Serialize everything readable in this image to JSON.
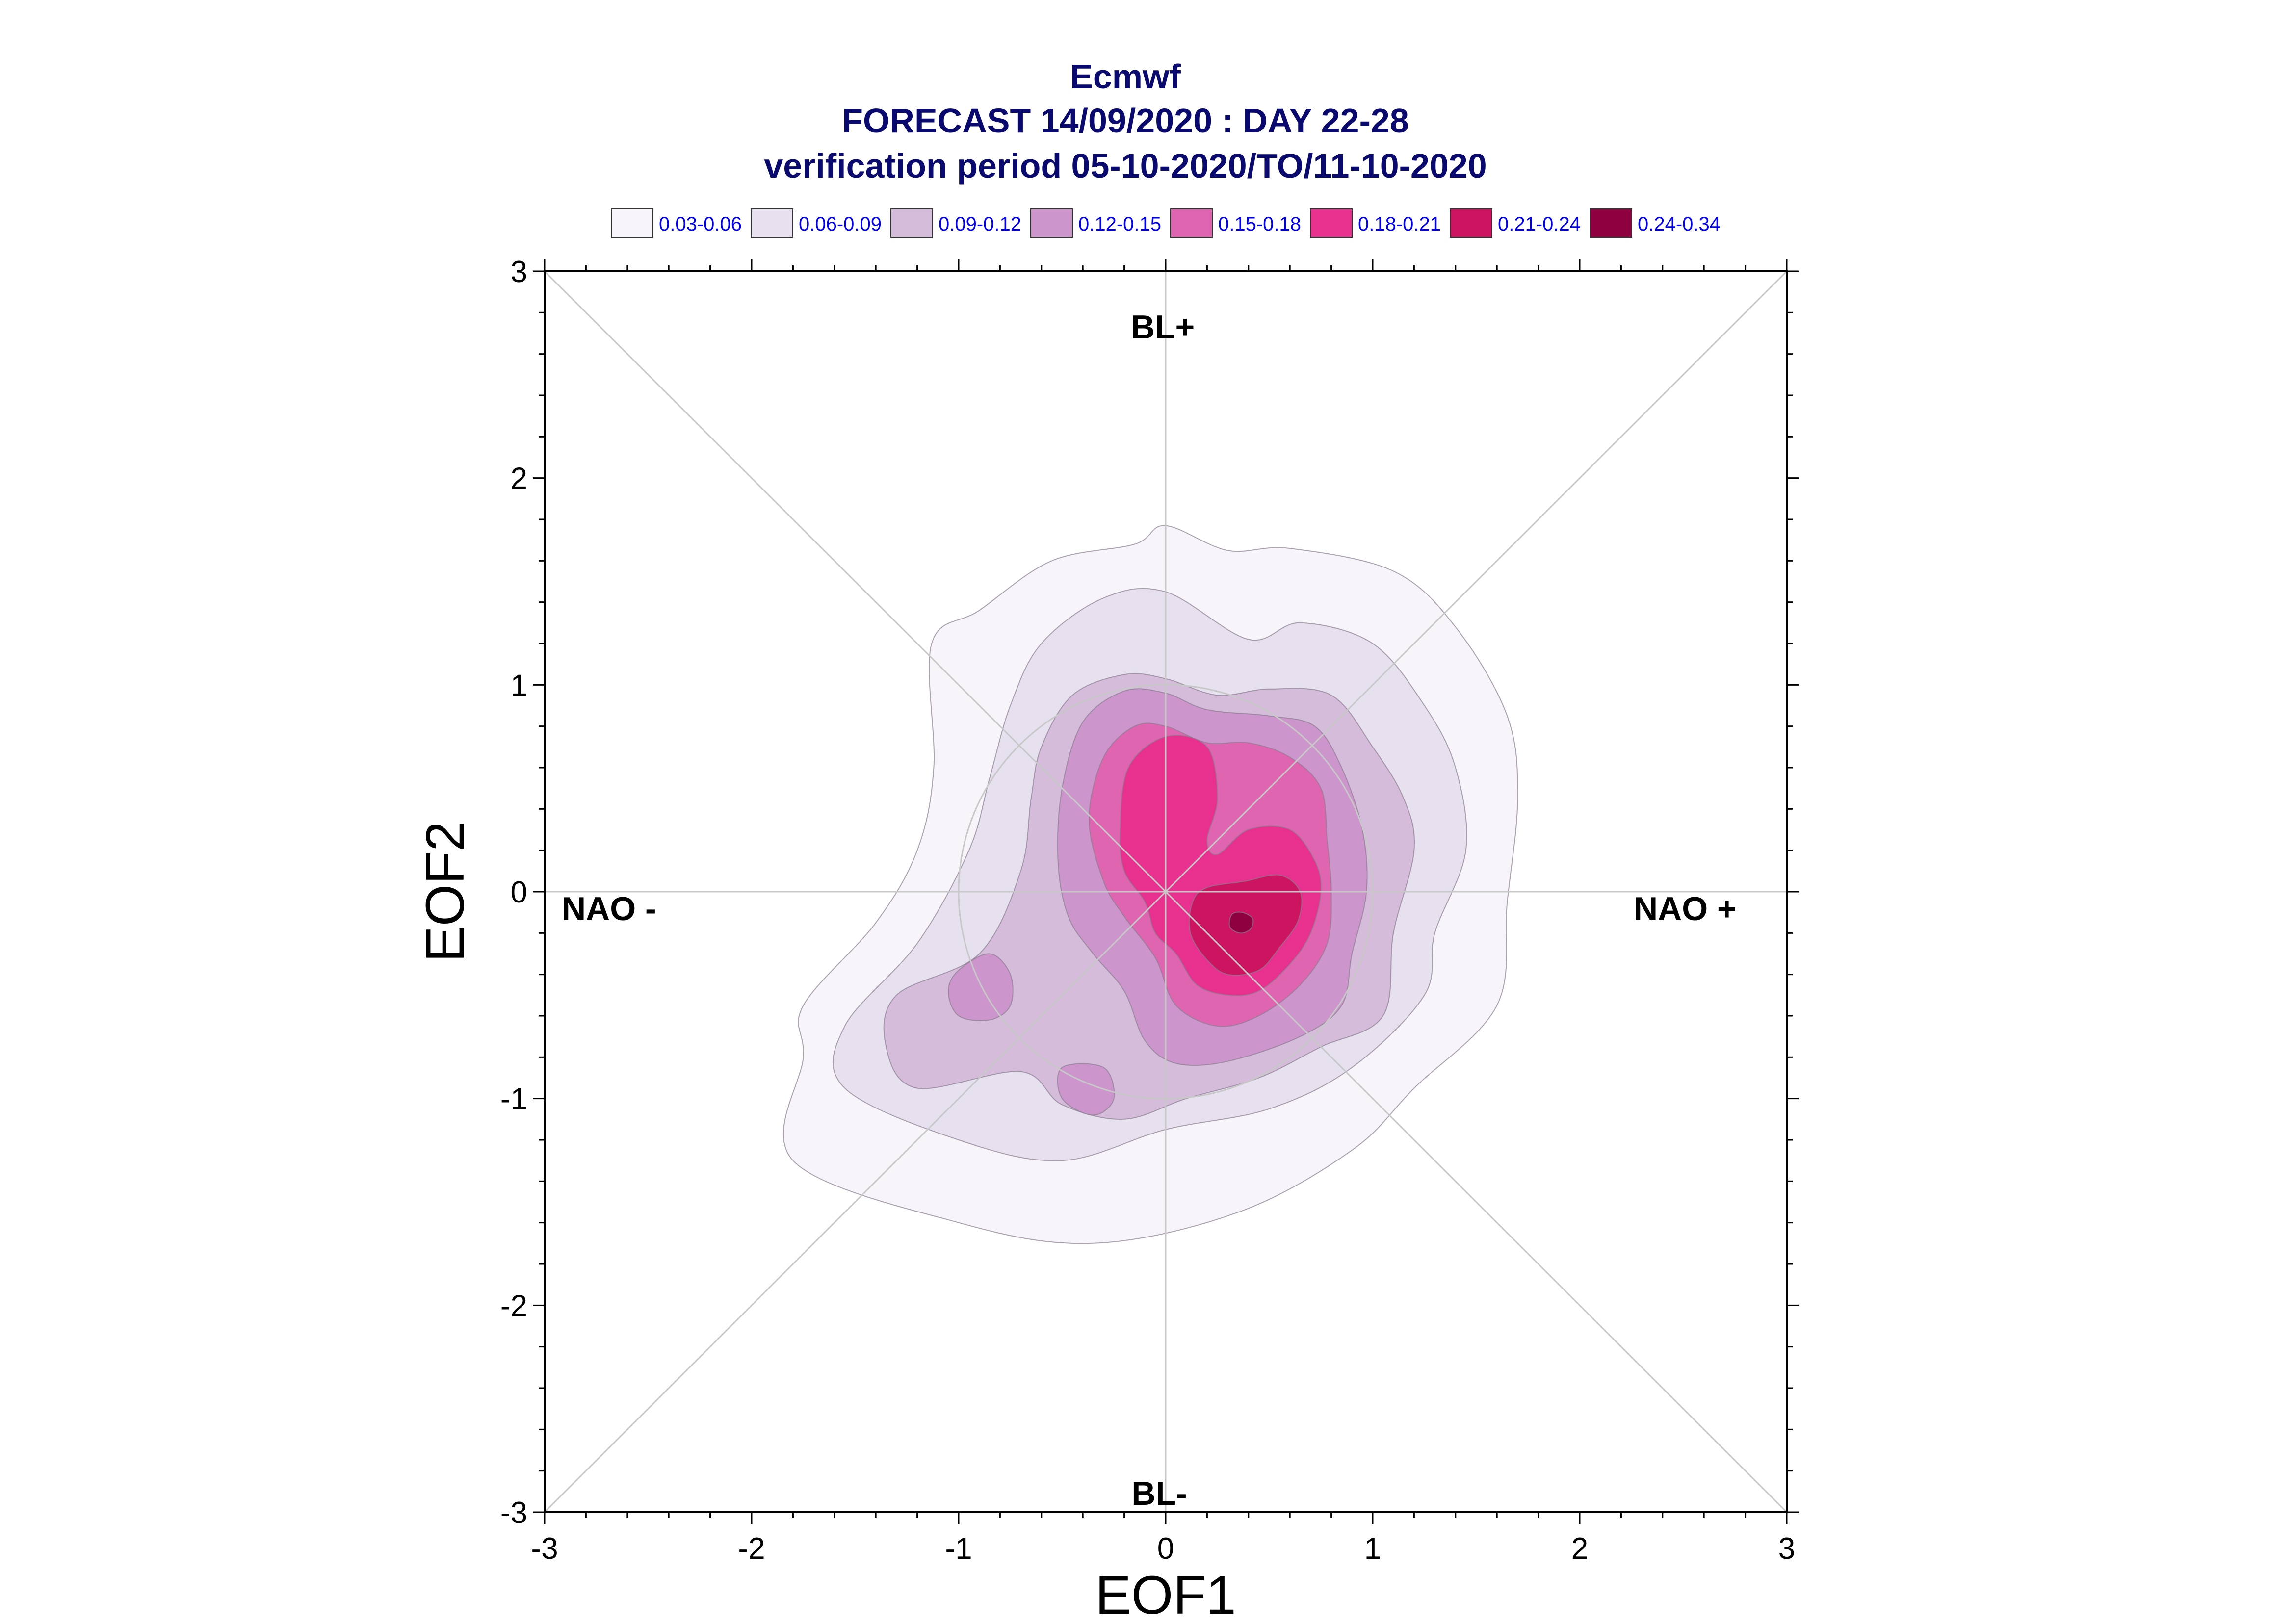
{
  "chart_data": {
    "type": "contour",
    "title": "Ecmwf",
    "subtitle_lines": [
      "FORECAST 14/09/2020 : DAY 22-28",
      "verification period 05-10-2020/TO/11-10-2020"
    ],
    "xlabel": "EOF1",
    "ylabel": "EOF2",
    "xlim": [
      -3,
      3
    ],
    "ylim": [
      -3,
      3
    ],
    "x_ticks": [
      "-3",
      "-2",
      "-1",
      "0",
      "1",
      "2",
      "3"
    ],
    "y_ticks": [
      "3",
      "2",
      "1",
      "0",
      "-1",
      "-2",
      "-3"
    ],
    "regime_labels": {
      "top": "BL+",
      "bottom": "BL-",
      "left": "NAO -",
      "right": "NAO +"
    },
    "legend": [
      {
        "label": "0.03-0.06",
        "color": "#f7f5f9"
      },
      {
        "label": "0.06-0.09",
        "color": "#e7e0ef"
      },
      {
        "label": "0.09-0.12",
        "color": "#d4bcda"
      },
      {
        "label": "0.12-0.15",
        "color": "#cc95cc"
      },
      {
        "label": "0.15-0.18",
        "color": "#df65b0"
      },
      {
        "label": "0.18-0.21",
        "color": "#e8308e"
      },
      {
        "label": "0.21-0.24",
        "color": "#cc1460"
      },
      {
        "label": "0.24-0.34",
        "color": "#8e0040"
      }
    ],
    "density_levels": [
      {
        "level": "0.03-0.06",
        "polygons": [
          [
            [
              -1.13,
              1.2
            ],
            [
              -0.9,
              1.36
            ],
            [
              -0.55,
              1.6
            ],
            [
              -0.15,
              1.68
            ],
            [
              0.0,
              1.77
            ],
            [
              0.3,
              1.65
            ],
            [
              0.6,
              1.66
            ],
            [
              1.1,
              1.55
            ],
            [
              1.4,
              1.28
            ],
            [
              1.65,
              0.85
            ],
            [
              1.7,
              0.45
            ],
            [
              1.65,
              -0.05
            ],
            [
              1.6,
              -0.55
            ],
            [
              1.2,
              -0.95
            ],
            [
              0.9,
              -1.25
            ],
            [
              0.35,
              -1.55
            ],
            [
              -0.35,
              -1.7
            ],
            [
              -1.0,
              -1.6
            ],
            [
              -1.8,
              -1.3
            ],
            [
              -1.75,
              -0.8
            ],
            [
              -1.75,
              -0.55
            ],
            [
              -1.4,
              -0.15
            ],
            [
              -1.2,
              0.2
            ],
            [
              -1.12,
              0.6
            ]
          ]
        ]
      },
      {
        "level": "0.06-0.09",
        "polygons": [
          [
            [
              -0.75,
              0.9
            ],
            [
              -0.6,
              1.2
            ],
            [
              -0.3,
              1.42
            ],
            [
              0.0,
              1.45
            ],
            [
              0.4,
              1.22
            ],
            [
              0.65,
              1.3
            ],
            [
              1.0,
              1.2
            ],
            [
              1.25,
              0.9
            ],
            [
              1.4,
              0.6
            ],
            [
              1.45,
              0.2
            ],
            [
              1.3,
              -0.2
            ],
            [
              1.25,
              -0.5
            ],
            [
              0.9,
              -0.85
            ],
            [
              0.5,
              -1.05
            ],
            [
              0.0,
              -1.15
            ],
            [
              -0.5,
              -1.3
            ],
            [
              -1.0,
              -1.2
            ],
            [
              -1.55,
              -0.95
            ],
            [
              -1.55,
              -0.65
            ],
            [
              -1.2,
              -0.25
            ],
            [
              -0.95,
              0.2
            ],
            [
              -0.85,
              0.55
            ]
          ]
        ]
      },
      {
        "level": "0.09-0.12",
        "polygons": [
          [
            [
              -0.6,
              0.7
            ],
            [
              -0.45,
              0.95
            ],
            [
              -0.2,
              1.05
            ],
            [
              0.0,
              1.03
            ],
            [
              0.25,
              0.95
            ],
            [
              0.5,
              0.98
            ],
            [
              0.8,
              0.95
            ],
            [
              1.0,
              0.7
            ],
            [
              1.15,
              0.45
            ],
            [
              1.2,
              0.2
            ],
            [
              1.1,
              -0.2
            ],
            [
              1.05,
              -0.6
            ],
            [
              0.75,
              -0.75
            ],
            [
              0.45,
              -0.9
            ],
            [
              0.1,
              -1.0
            ],
            [
              -0.2,
              -1.1
            ],
            [
              -0.5,
              -1.03
            ],
            [
              -0.7,
              -0.87
            ],
            [
              -1.2,
              -0.95
            ],
            [
              -1.35,
              -0.75
            ],
            [
              -1.3,
              -0.5
            ],
            [
              -0.9,
              -0.3
            ],
            [
              -0.7,
              0.1
            ],
            [
              -0.65,
              0.45
            ]
          ]
        ]
      },
      {
        "level": "0.12-0.15",
        "polygons": [
          [
            [
              -0.5,
              0.5
            ],
            [
              -0.4,
              0.82
            ],
            [
              -0.2,
              0.97
            ],
            [
              0.0,
              0.96
            ],
            [
              0.2,
              0.88
            ],
            [
              0.5,
              0.85
            ],
            [
              0.72,
              0.8
            ],
            [
              0.85,
              0.6
            ],
            [
              0.95,
              0.3
            ],
            [
              0.97,
              0.0
            ],
            [
              0.9,
              -0.3
            ],
            [
              0.85,
              -0.55
            ],
            [
              0.65,
              -0.7
            ],
            [
              0.3,
              -0.82
            ],
            [
              0.05,
              -0.83
            ],
            [
              -0.1,
              -0.72
            ],
            [
              -0.2,
              -0.48
            ],
            [
              -0.35,
              -0.3
            ],
            [
              -0.47,
              -0.12
            ],
            [
              -0.52,
              0.15
            ]
          ],
          [
            [
              -1.0,
              -0.38
            ],
            [
              -0.85,
              -0.3
            ],
            [
              -0.75,
              -0.4
            ],
            [
              -0.75,
              -0.55
            ],
            [
              -0.85,
              -0.62
            ],
            [
              -1.0,
              -0.6
            ],
            [
              -1.05,
              -0.48
            ]
          ],
          [
            [
              -0.5,
              -0.85
            ],
            [
              -0.3,
              -0.85
            ],
            [
              -0.25,
              -1.0
            ],
            [
              -0.35,
              -1.08
            ],
            [
              -0.5,
              -1.0
            ]
          ]
        ]
      },
      {
        "level": "0.15-0.18",
        "polygons": [
          [
            [
              -0.37,
              0.35
            ],
            [
              -0.3,
              0.65
            ],
            [
              -0.15,
              0.8
            ],
            [
              0.0,
              0.8
            ],
            [
              0.2,
              0.72
            ],
            [
              0.4,
              0.72
            ],
            [
              0.6,
              0.65
            ],
            [
              0.75,
              0.5
            ],
            [
              0.78,
              0.25
            ],
            [
              0.8,
              0.0
            ],
            [
              0.78,
              -0.25
            ],
            [
              0.65,
              -0.45
            ],
            [
              0.45,
              -0.6
            ],
            [
              0.25,
              -0.65
            ],
            [
              0.05,
              -0.55
            ],
            [
              -0.05,
              -0.32
            ],
            [
              -0.2,
              -0.12
            ],
            [
              -0.3,
              0.05
            ]
          ]
        ]
      },
      {
        "level": "0.18-0.21",
        "polygons": [
          [
            [
              -0.22,
              0.3
            ],
            [
              -0.18,
              0.6
            ],
            [
              0.0,
              0.75
            ],
            [
              0.2,
              0.7
            ],
            [
              0.25,
              0.45
            ],
            [
              0.2,
              0.25
            ],
            [
              0.25,
              0.18
            ],
            [
              0.4,
              0.3
            ],
            [
              0.6,
              0.3
            ],
            [
              0.72,
              0.15
            ],
            [
              0.75,
              0.0
            ],
            [
              0.7,
              -0.2
            ],
            [
              0.6,
              -0.35
            ],
            [
              0.45,
              -0.48
            ],
            [
              0.3,
              -0.5
            ],
            [
              0.15,
              -0.45
            ],
            [
              0.05,
              -0.3
            ],
            [
              -0.05,
              -0.2
            ],
            [
              -0.1,
              -0.05
            ],
            [
              -0.2,
              0.1
            ]
          ]
        ]
      },
      {
        "level": "0.21-0.24",
        "polygons": [
          [
            [
              0.13,
              -0.05
            ],
            [
              0.2,
              0.02
            ],
            [
              0.38,
              0.05
            ],
            [
              0.55,
              0.08
            ],
            [
              0.65,
              0.0
            ],
            [
              0.64,
              -0.14
            ],
            [
              0.55,
              -0.27
            ],
            [
              0.45,
              -0.38
            ],
            [
              0.3,
              -0.4
            ],
            [
              0.2,
              -0.33
            ],
            [
              0.12,
              -0.2
            ]
          ]
        ]
      },
      {
        "level": "0.24-0.34",
        "polygons": [
          [
            [
              0.32,
              -0.11
            ],
            [
              0.37,
              -0.1
            ],
            [
              0.42,
              -0.13
            ],
            [
              0.41,
              -0.18
            ],
            [
              0.36,
              -0.2
            ],
            [
              0.31,
              -0.17
            ]
          ]
        ]
      }
    ],
    "grid": {
      "axis_lines": true,
      "diagonals": true,
      "unit_circle": true
    }
  }
}
